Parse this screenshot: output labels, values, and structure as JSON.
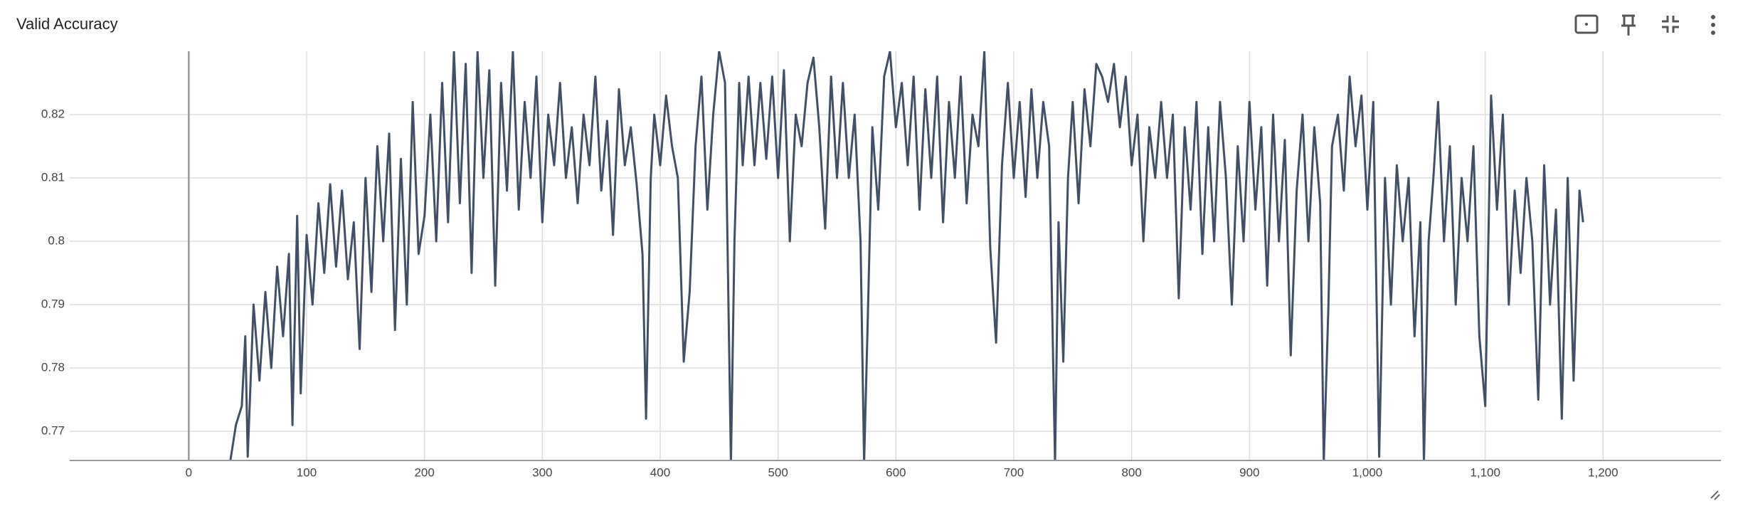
{
  "chart_data": {
    "type": "line",
    "title": "Valid Accuracy",
    "color": "#425066",
    "grid": true,
    "xlim": [
      -101,
      1300
    ],
    "ylim": [
      0.7654,
      0.83
    ],
    "xticks": [
      0,
      100,
      200,
      300,
      400,
      500,
      600,
      700,
      800,
      900,
      {
        "value": 1000,
        "label": "1,000"
      },
      {
        "value": 1100,
        "label": "1,100"
      },
      {
        "value": 1200,
        "label": "1,200"
      }
    ],
    "yticks": [
      0.77,
      0.78,
      0.79,
      0.8,
      0.81,
      0.82
    ],
    "x": [
      35,
      40,
      45,
      48,
      50,
      55,
      60,
      65,
      70,
      75,
      80,
      85,
      88,
      92,
      95,
      100,
      105,
      110,
      115,
      120,
      125,
      130,
      135,
      140,
      145,
      150,
      155,
      160,
      165,
      170,
      175,
      180,
      185,
      190,
      195,
      200,
      205,
      210,
      215,
      220,
      225,
      230,
      235,
      240,
      245,
      250,
      255,
      260,
      265,
      270,
      275,
      280,
      285,
      290,
      295,
      300,
      305,
      310,
      315,
      320,
      325,
      330,
      335,
      340,
      345,
      350,
      355,
      360,
      365,
      370,
      375,
      380,
      385,
      388,
      392,
      395,
      400,
      405,
      410,
      415,
      420,
      425,
      430,
      435,
      440,
      445,
      450,
      455,
      460,
      463,
      467,
      470,
      475,
      480,
      485,
      490,
      495,
      500,
      505,
      510,
      515,
      520,
      525,
      530,
      535,
      540,
      545,
      550,
      555,
      560,
      565,
      570,
      573,
      576,
      580,
      585,
      590,
      595,
      600,
      605,
      610,
      615,
      620,
      625,
      630,
      635,
      640,
      645,
      650,
      655,
      660,
      665,
      670,
      675,
      680,
      685,
      690,
      695,
      700,
      705,
      710,
      715,
      720,
      725,
      730,
      735,
      738,
      742,
      746,
      750,
      755,
      760,
      765,
      770,
      775,
      780,
      785,
      790,
      795,
      800,
      805,
      810,
      815,
      820,
      825,
      830,
      835,
      840,
      845,
      850,
      855,
      860,
      865,
      870,
      875,
      880,
      885,
      890,
      895,
      900,
      905,
      910,
      915,
      920,
      925,
      930,
      935,
      940,
      945,
      950,
      955,
      960,
      963,
      967,
      970,
      975,
      980,
      985,
      990,
      995,
      1000,
      1005,
      1010,
      1015,
      1020,
      1025,
      1030,
      1035,
      1040,
      1045,
      1048,
      1052,
      1056,
      1060,
      1065,
      1070,
      1075,
      1080,
      1085,
      1090,
      1095,
      1100,
      1105,
      1110,
      1115,
      1120,
      1125,
      1130,
      1135,
      1140,
      1145,
      1150,
      1155,
      1160,
      1165,
      1170,
      1175,
      1180,
      1183
    ],
    "values": [
      0.765,
      0.771,
      0.774,
      0.785,
      0.766,
      0.79,
      0.778,
      0.792,
      0.78,
      0.796,
      0.785,
      0.798,
      0.771,
      0.804,
      0.776,
      0.801,
      0.79,
      0.806,
      0.795,
      0.809,
      0.796,
      0.808,
      0.794,
      0.803,
      0.783,
      0.81,
      0.792,
      0.815,
      0.8,
      0.817,
      0.786,
      0.813,
      0.79,
      0.822,
      0.798,
      0.804,
      0.82,
      0.8,
      0.825,
      0.803,
      0.83,
      0.806,
      0.828,
      0.795,
      0.83,
      0.81,
      0.827,
      0.793,
      0.825,
      0.808,
      0.83,
      0.805,
      0.822,
      0.81,
      0.826,
      0.803,
      0.82,
      0.812,
      0.825,
      0.81,
      0.818,
      0.806,
      0.82,
      0.812,
      0.826,
      0.808,
      0.819,
      0.801,
      0.824,
      0.812,
      0.818,
      0.809,
      0.798,
      0.772,
      0.81,
      0.82,
      0.812,
      0.823,
      0.815,
      0.81,
      0.781,
      0.792,
      0.815,
      0.826,
      0.805,
      0.82,
      0.83,
      0.825,
      0.765,
      0.8,
      0.825,
      0.812,
      0.826,
      0.812,
      0.825,
      0.813,
      0.826,
      0.81,
      0.827,
      0.8,
      0.82,
      0.815,
      0.825,
      0.829,
      0.818,
      0.802,
      0.826,
      0.81,
      0.825,
      0.81,
      0.82,
      0.8,
      0.765,
      0.787,
      0.818,
      0.805,
      0.826,
      0.83,
      0.818,
      0.825,
      0.812,
      0.826,
      0.805,
      0.824,
      0.81,
      0.826,
      0.803,
      0.822,
      0.81,
      0.826,
      0.806,
      0.82,
      0.815,
      0.83,
      0.799,
      0.784,
      0.812,
      0.825,
      0.81,
      0.822,
      0.807,
      0.824,
      0.81,
      0.822,
      0.815,
      0.765,
      0.803,
      0.781,
      0.81,
      0.822,
      0.806,
      0.824,
      0.815,
      0.828,
      0.826,
      0.822,
      0.828,
      0.818,
      0.826,
      0.812,
      0.82,
      0.8,
      0.818,
      0.81,
      0.822,
      0.81,
      0.82,
      0.791,
      0.818,
      0.805,
      0.822,
      0.798,
      0.818,
      0.8,
      0.822,
      0.81,
      0.79,
      0.815,
      0.8,
      0.822,
      0.805,
      0.818,
      0.793,
      0.82,
      0.8,
      0.816,
      0.782,
      0.808,
      0.82,
      0.8,
      0.818,
      0.806,
      0.765,
      0.79,
      0.815,
      0.82,
      0.808,
      0.826,
      0.815,
      0.823,
      0.805,
      0.822,
      0.766,
      0.81,
      0.79,
      0.812,
      0.8,
      0.81,
      0.785,
      0.803,
      0.765,
      0.8,
      0.81,
      0.822,
      0.8,
      0.815,
      0.79,
      0.81,
      0.8,
      0.815,
      0.785,
      0.774,
      0.823,
      0.805,
      0.82,
      0.79,
      0.808,
      0.795,
      0.81,
      0.8,
      0.775,
      0.812,
      0.79,
      0.805,
      0.772,
      0.81,
      0.778,
      0.808,
      0.803
    ]
  }
}
